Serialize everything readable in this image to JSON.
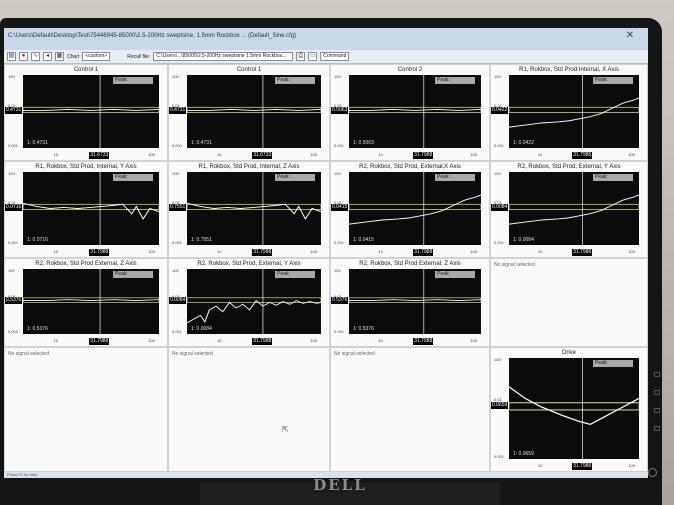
{
  "window": {
    "title": "C:\\Users\\Default\\Desktop\\Test\\75446845-85000\\2.5-200Hz sweptsine, 1.5mm Rockbox ... (Default_Sine.cfg)",
    "close": "✕"
  },
  "toolbar": {
    "chart_label": "Chart",
    "custom_label": "<custom>",
    "recall_label": "Recall file:",
    "recall_value": "C:\\Users\\...\\85000\\2.5-200Hz sweptsine 1.5mm Rockbox...",
    "command_label": "Command",
    "icons": [
      "open-icon",
      "stop-icon",
      "chart-icon",
      "back-icon",
      "save-icon",
      "print-icon"
    ]
  },
  "panels": [
    {
      "title": "Control 1",
      "peak": "Peak:",
      "y_ticks": [
        "100",
        "0.01",
        "0.001"
      ],
      "value": "0.4731",
      "cursor_label": "1: 0.4731",
      "x_cursor": "31.6733",
      "x_ticks": [
        "10",
        "100"
      ],
      "trace": "flat"
    },
    {
      "title": "Control 1",
      "peak": "Peak:",
      "y_ticks": [
        "100",
        "0.01",
        "0.001"
      ],
      "value": "0.4731",
      "cursor_label": "1: 0.4731",
      "x_cursor": "31.6733",
      "x_ticks": [
        "10",
        "100"
      ],
      "trace": "flat"
    },
    {
      "title": "Control 2",
      "peak": "Peak:",
      "y_ticks": [
        "100",
        "0.01",
        "0.001"
      ],
      "value": "0.5063",
      "cursor_label": "1: 0.5063",
      "x_cursor": "31.7988",
      "x_ticks": [
        "10",
        "100"
      ],
      "trace": "flat"
    },
    {
      "title": "R1, Rokbox, Std Prod Internal, X Axis",
      "peak": "Peak:",
      "y_ticks": [
        "100",
        "0.01",
        "0.001"
      ],
      "value": "0.0422",
      "cursor_label": "1: 0.0422",
      "x_cursor": "31.7988",
      "x_ticks": [
        "10",
        "100"
      ],
      "trace": "rising"
    },
    {
      "title": "R1, Rokbox, Std Prod, Internal, Y Axis",
      "peak": "Peak:",
      "y_ticks": [
        "100",
        "0.01",
        "0.001"
      ],
      "value": "0.0716",
      "cursor_label": "1: 0.0716",
      "x_cursor": "31.7988",
      "x_ticks": [
        "10",
        "100"
      ],
      "trace": "dip"
    },
    {
      "title": "R1, Rokbox, Std Prod, Internal, Z Axis",
      "peak": "Peak:",
      "y_ticks": [
        "100",
        "0.01",
        "0.001"
      ],
      "value": "0.7551",
      "cursor_label": "1: 0.7551",
      "x_cursor": "31.7988",
      "x_ticks": [
        "10",
        "100"
      ],
      "trace": "dip"
    },
    {
      "title": "R2, Rokbox, Std Prod, External,X Axis",
      "peak": "Peak:",
      "y_ticks": [
        "100",
        "0.01",
        "0.001"
      ],
      "value": "0.0415",
      "cursor_label": "1: 0.0415",
      "x_cursor": "31.7988",
      "x_ticks": [
        "10",
        "100"
      ],
      "trace": "rising"
    },
    {
      "title": "R2, Rokbox, Std Prod, External, Y Axis",
      "peak": "Peak:",
      "y_ticks": [
        "100",
        "0.01",
        "0.001"
      ],
      "value": "0.0084",
      "cursor_label": "1: 0.0084",
      "x_cursor": "31.7988",
      "x_ticks": [
        "10",
        "100"
      ],
      "trace": "rising"
    },
    {
      "title": "R2, Rokbox, Std Prod External, Z Axis",
      "peak": "Peak:",
      "y_ticks": [
        "100",
        "0.01",
        "0.001"
      ],
      "value": "0.5376",
      "cursor_label": "1: 0.5376",
      "x_cursor": "31.7988",
      "x_ticks": [
        "10",
        "100"
      ],
      "trace": "flat"
    },
    {
      "title": "R2, Rokbox, Std Prod, External, Y Axis",
      "peak": "Peak:",
      "y_ticks": [
        "100",
        "0.01",
        "0.001"
      ],
      "value": "0.0084",
      "cursor_label": "1: 0.0084",
      "x_cursor": "31.7988",
      "x_ticks": [
        "10",
        "100"
      ],
      "trace": "noisy"
    },
    {
      "title": "R2, Rokbox, Std Prod External, Z Axis",
      "peak": "Peak:",
      "y_ticks": [
        "100",
        "0.01",
        "0.001"
      ],
      "value": "0.5376",
      "cursor_label": "1: 0.5376",
      "x_cursor": "31.7988",
      "x_ticks": [
        "10",
        "100"
      ],
      "trace": "flat"
    },
    {
      "no_signal": "No signal selected"
    },
    {
      "no_signal": "No signal selected"
    },
    {
      "no_signal": "No signal selected"
    },
    {
      "no_signal": "No signal selected"
    },
    {
      "title": "Drive",
      "peak": "Peak:",
      "y_ticks": [
        "100",
        "0.01",
        "0.001"
      ],
      "value": "0.0659",
      "cursor_label": "1: 0.0659",
      "x_cursor": "31.7988",
      "x_ticks": [
        "10",
        "100"
      ],
      "trace": "vshape"
    }
  ],
  "status": {
    "text": "Press F1 for help"
  },
  "monitor": {
    "brand": "DELL"
  },
  "colors": {
    "plot_bg": "#0b0b0b",
    "trace": "#ffffff",
    "limit_band": "#c8c87a",
    "cursor": "#ffffff"
  }
}
